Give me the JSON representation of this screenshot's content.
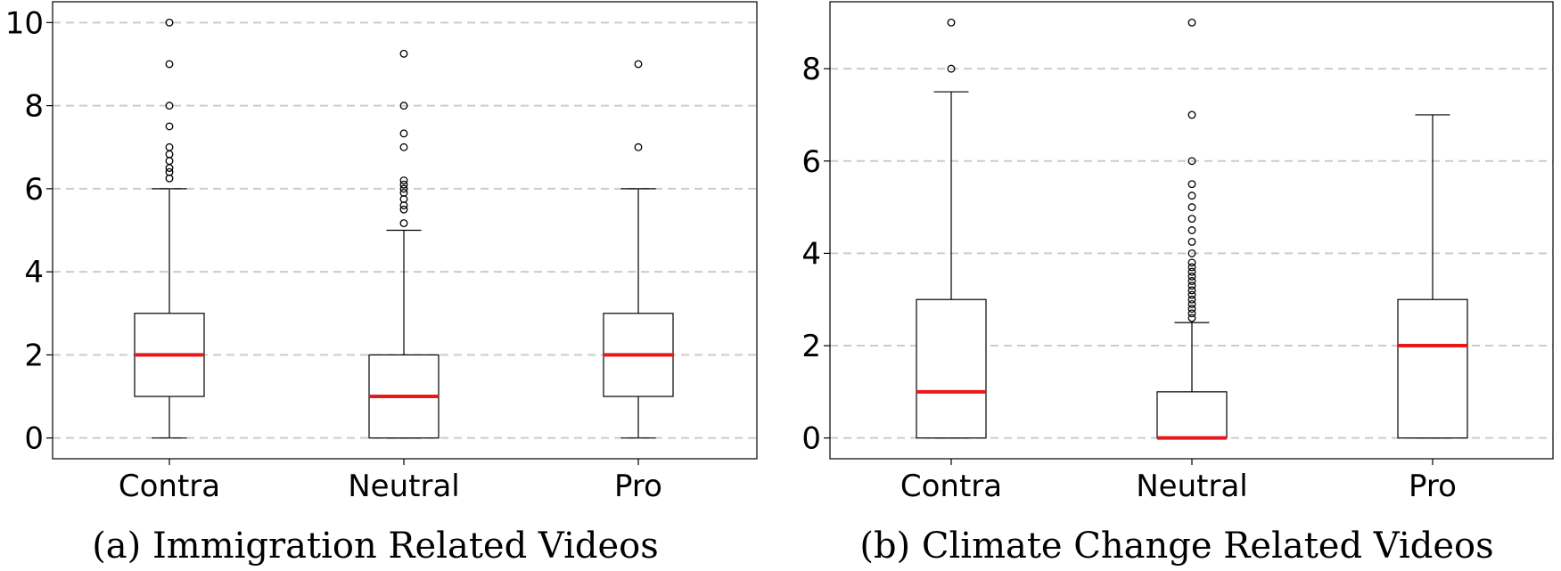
{
  "chart_data": [
    {
      "type": "box",
      "caption": "(a) Immigration Related Videos",
      "ylim": [
        -0.5,
        10.5
      ],
      "yticks": [
        0,
        2,
        4,
        6,
        8,
        10
      ],
      "grid": "y-dashed",
      "colors": {
        "median": "#e8191a",
        "box": "#000000",
        "grid": "#cccccc"
      },
      "categories": [
        "Contra",
        "Neutral",
        "Pro"
      ],
      "boxes": [
        {
          "name": "Contra",
          "whisker_low": 0,
          "q1": 1,
          "median": 2,
          "q3": 3,
          "whisker_high": 6,
          "outliers": [
            6.25,
            6.4,
            6.5,
            6.67,
            6.83,
            7.0,
            7.5,
            8.0,
            9.0,
            10.0
          ]
        },
        {
          "name": "Neutral",
          "whisker_low": 0,
          "q1": 0,
          "median": 1,
          "q3": 2,
          "whisker_high": 5,
          "outliers": [
            5.17,
            5.5,
            5.6,
            5.75,
            5.9,
            6.0,
            6.1,
            6.2,
            7.0,
            7.33,
            8.0,
            9.25
          ]
        },
        {
          "name": "Pro",
          "whisker_low": 0,
          "q1": 1,
          "median": 2,
          "q3": 3,
          "whisker_high": 6,
          "outliers": [
            7.0,
            9.0
          ]
        }
      ]
    },
    {
      "type": "box",
      "caption": "(b) Climate Change Related Videos",
      "ylim": [
        -0.45,
        9.45
      ],
      "yticks": [
        0,
        2,
        4,
        6,
        8
      ],
      "grid": "y-dashed",
      "colors": {
        "median": "#e8191a",
        "box": "#000000",
        "grid": "#cccccc"
      },
      "categories": [
        "Contra",
        "Neutral",
        "Pro"
      ],
      "boxes": [
        {
          "name": "Contra",
          "whisker_low": 0,
          "q1": 0,
          "median": 1,
          "q3": 3,
          "whisker_high": 7.5,
          "outliers": [
            8.0,
            9.0
          ]
        },
        {
          "name": "Neutral",
          "whisker_low": 0,
          "q1": 0,
          "median": 0,
          "q3": 1,
          "whisker_high": 2.5,
          "outliers": [
            2.6,
            2.7,
            2.8,
            2.9,
            3.0,
            3.1,
            3.2,
            3.3,
            3.4,
            3.5,
            3.6,
            3.7,
            3.8,
            4.0,
            4.25,
            4.5,
            4.75,
            5.0,
            5.25,
            5.5,
            6.0,
            7.0,
            9.0
          ]
        },
        {
          "name": "Pro",
          "whisker_low": 0,
          "q1": 0,
          "median": 2,
          "q3": 3,
          "whisker_high": 7,
          "outliers": []
        }
      ]
    }
  ]
}
